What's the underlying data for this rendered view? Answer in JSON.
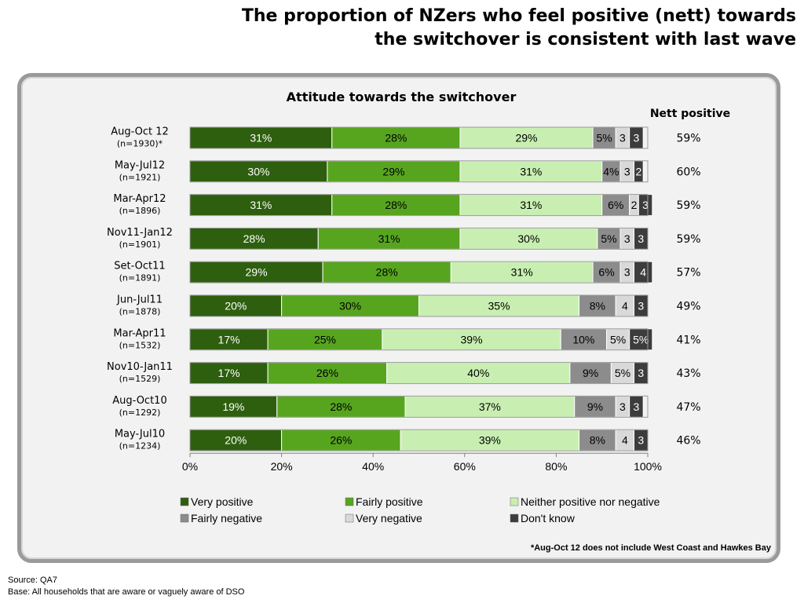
{
  "headline": {
    "line1": "The proportion of NZers who feel positive (nett) towards",
    "line2": "the switchover is consistent with last wave"
  },
  "colors": {
    "very_positive": "#2e5f0f",
    "fairly_positive": "#57a51f",
    "neither": "#c8efb1",
    "fairly_negative": "#8c8c8c",
    "very_negative": "#d9d9d9",
    "dont_know": "#3c3c3c"
  },
  "chart_data": {
    "type": "bar",
    "orientation": "horizontal-stacked-100",
    "title": "Attitude towards the switchover",
    "nett_header": "Nett positive",
    "categories": [
      "Aug-Oct 12",
      "May-Jul12",
      "Mar-Apr12",
      "Nov11-Jan12",
      "Set-Oct11",
      "Jun-Jul11",
      "Mar-Apr11",
      "Nov10-Jan11",
      "Aug-Oct10",
      "May-Jul10"
    ],
    "category_bases": [
      "(n=1930)*",
      "(n=1921)",
      "(n=1896)",
      "(n=1901)",
      "(n=1891)",
      "(n=1878)",
      "(n=1532)",
      "(n=1529)",
      "(n=1292)",
      "(n=1234)"
    ],
    "series": [
      {
        "name": "Very positive",
        "values": [
          31,
          30,
          31,
          28,
          29,
          20,
          17,
          17,
          19,
          20
        ],
        "labels": [
          "31%",
          "30%",
          "31%",
          "28%",
          "29%",
          "20%",
          "17%",
          "17%",
          "19%",
          "20%"
        ]
      },
      {
        "name": "Fairly positive",
        "values": [
          28,
          29,
          28,
          31,
          28,
          30,
          25,
          26,
          28,
          26
        ],
        "labels": [
          "28%",
          "29%",
          "28%",
          "31%",
          "28%",
          "30%",
          "25%",
          "26%",
          "28%",
          "26%"
        ]
      },
      {
        "name": "Neither positive nor negative",
        "values": [
          29,
          31,
          31,
          30,
          31,
          35,
          39,
          40,
          37,
          39
        ],
        "labels": [
          "29%",
          "31%",
          "31%",
          "30%",
          "31%",
          "35%",
          "39%",
          "40%",
          "37%",
          "39%"
        ]
      },
      {
        "name": "Fairly negative",
        "values": [
          5,
          4,
          6,
          5,
          6,
          8,
          10,
          9,
          9,
          8
        ],
        "labels": [
          "5%",
          "4%",
          "6%",
          "5%",
          "6%",
          "8%",
          "10%",
          "9%",
          "9%",
          "8%"
        ]
      },
      {
        "name": "Very negative",
        "values": [
          3,
          3,
          2,
          3,
          3,
          4,
          5,
          5,
          3,
          4
        ],
        "labels": [
          "3",
          "3",
          "2",
          "3",
          "3",
          "4",
          "5%",
          "5%",
          "3",
          "4"
        ]
      },
      {
        "name": "Don't know",
        "values": [
          3,
          2,
          3,
          3,
          4,
          3,
          5,
          3,
          3,
          3
        ],
        "labels": [
          "3",
          "2",
          "3",
          "3",
          "4",
          "3",
          "5%",
          "3",
          "3",
          "3"
        ]
      }
    ],
    "nett_positive": [
      "59%",
      "60%",
      "59%",
      "59%",
      "57%",
      "49%",
      "41%",
      "43%",
      "47%",
      "46%"
    ],
    "xlim": [
      0,
      100
    ],
    "x_ticks": [
      "0%",
      "20%",
      "40%",
      "60%",
      "80%",
      "100%"
    ],
    "legend_position": "bottom",
    "grid": false
  },
  "footnote": "*Aug-Oct 12 does not include West Coast and Hawkes Bay",
  "source": {
    "line1": "Source:  QA7",
    "line2": "Base: All households that are aware or vaguely aware of DSO"
  }
}
